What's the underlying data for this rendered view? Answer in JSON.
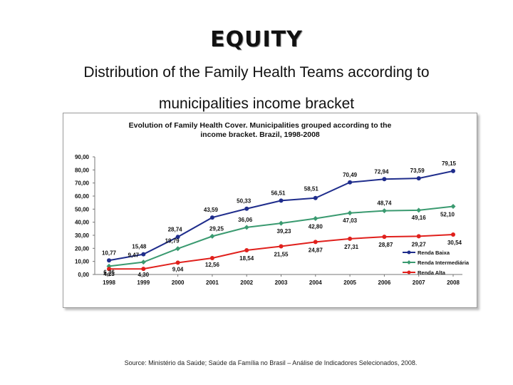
{
  "slide": {
    "title": "EQUITY",
    "subtitle_line1": "Distribution of the Family Health Teams according to",
    "subtitle_line2": "municipalities income bracket",
    "source": "Source: Ministério da Saúde; Saúde da Família no Brasil – Análise de Indicadores Selecionados, 2008."
  },
  "chart_data": {
    "type": "line",
    "title_line1": "Evolution of Family Health Cover. Municipalities grouped according to the",
    "title_line2": "income  bracket. Brazil, 1998-2008",
    "categories": [
      "1998",
      "1999",
      "2000",
      "2001",
      "2002",
      "2003",
      "2004",
      "2005",
      "2006",
      "2007",
      "2008"
    ],
    "y_ticks": [
      "0,00",
      "10,00",
      "20,00",
      "30,00",
      "40,00",
      "50,00",
      "60,00",
      "70,00",
      "80,00",
      "90,00"
    ],
    "ylim": [
      0,
      90
    ],
    "grid": false,
    "legend_position": "bottom-right",
    "series": [
      {
        "name": "Renda Baixa",
        "color": "#1f2d8c",
        "values": [
          10.77,
          15.48,
          28.74,
          43.59,
          50.33,
          56.51,
          58.51,
          70.49,
          72.94,
          73.59,
          79.15
        ],
        "labels": [
          "10,77",
          "15,48",
          "28,74",
          "43,59",
          "50,33",
          "56,51",
          "58,51",
          "70,49",
          "72,94",
          "73,59",
          "79,15"
        ]
      },
      {
        "name": "Renda Intermediária",
        "color": "#3a9a70",
        "values": [
          6.36,
          9.47,
          19.79,
          29.25,
          36.06,
          39.23,
          42.8,
          47.03,
          48.74,
          49.16,
          52.1
        ],
        "labels": [
          "6,36",
          "9,47",
          "19,79",
          "29,25",
          "36,06",
          "39,23",
          "42,80",
          "47,03",
          "48,74",
          "49,16",
          "52,10"
        ]
      },
      {
        "name": "Renda Alta",
        "color": "#e0201c",
        "values": [
          4.23,
          4.3,
          9.04,
          12.56,
          18.54,
          21.55,
          24.87,
          27.31,
          28.87,
          29.27,
          30.54
        ],
        "labels": [
          "4,23",
          "4,30",
          "9,04",
          "12,56",
          "18,54",
          "21,55",
          "24,87",
          "27,31",
          "28,87",
          "29,27",
          "30,54"
        ]
      }
    ]
  }
}
